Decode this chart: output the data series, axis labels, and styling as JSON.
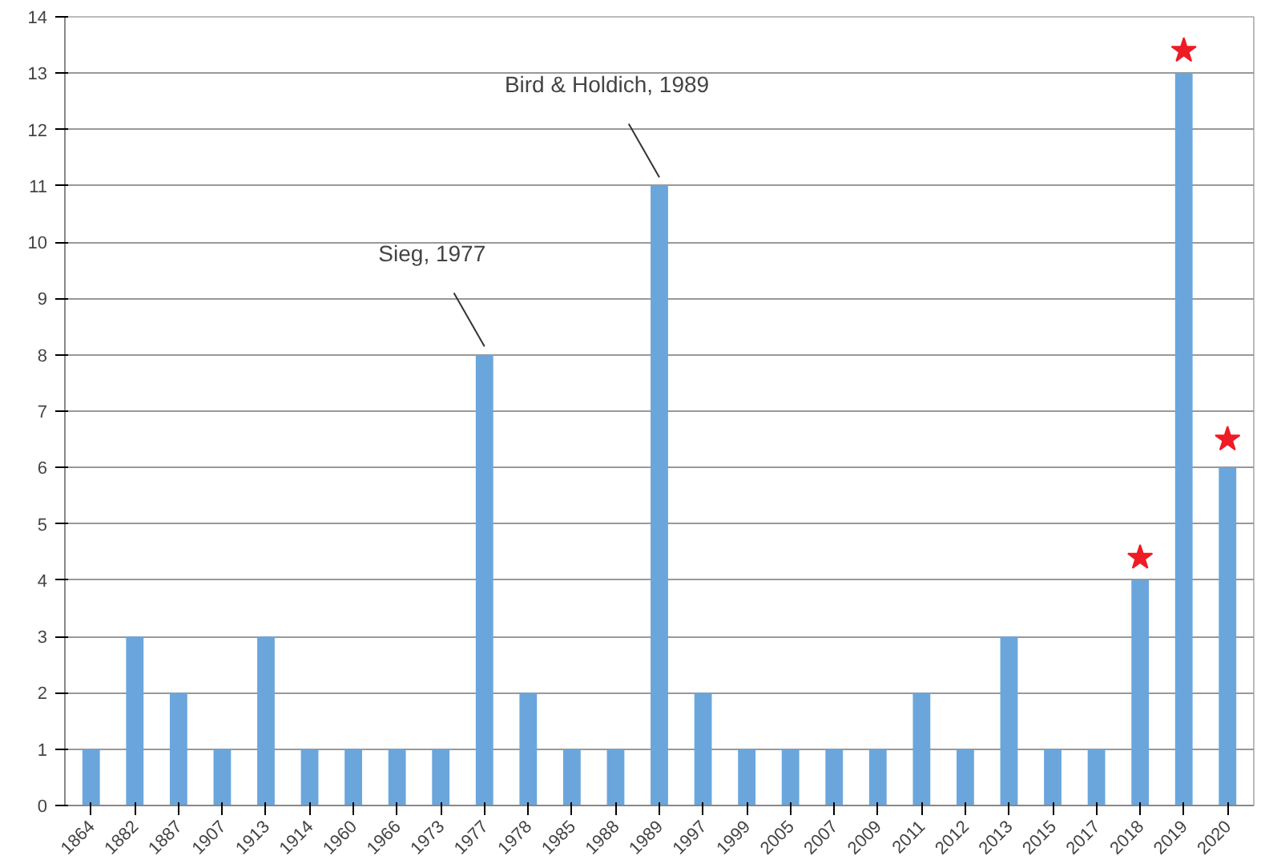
{
  "chart_data": {
    "type": "bar",
    "categories": [
      "1864",
      "1882",
      "1887",
      "1907",
      "1913",
      "1914",
      "1960",
      "1966",
      "1973",
      "1977",
      "1978",
      "1985",
      "1988",
      "1989",
      "1997",
      "1999",
      "2005",
      "2007",
      "2009",
      "2011",
      "2012",
      "2013",
      "2015",
      "2017",
      "2018",
      "2019",
      "2020"
    ],
    "series": [
      {
        "color": "#6aa6dc",
        "values": [
          1,
          3,
          2,
          1,
          3,
          1,
          1,
          1,
          1,
          8,
          2,
          1,
          1,
          11,
          2,
          1,
          1,
          1,
          1,
          2,
          1,
          3,
          1,
          1,
          4,
          13,
          6
        ]
      },
      {
        "type": "scatter",
        "color": "#ee1c25",
        "marker": "star",
        "values": [
          null,
          null,
          null,
          null,
          null,
          null,
          null,
          null,
          null,
          null,
          null,
          null,
          null,
          null,
          null,
          null,
          null,
          null,
          null,
          null,
          null,
          null,
          null,
          null,
          4.4,
          13.4,
          6.5
        ]
      }
    ],
    "ylim": [
      0,
      14
    ],
    "yticks": [
      0,
      1,
      2,
      3,
      4,
      5,
      6,
      7,
      8,
      9,
      10,
      11,
      12,
      13,
      14
    ],
    "grid": "y",
    "annotations": [
      {
        "text": "Sieg, 1977",
        "x": "1977",
        "y": 8
      },
      {
        "text": "Bird & Holdich, 1989",
        "x": "1989",
        "y": 11
      }
    ]
  }
}
